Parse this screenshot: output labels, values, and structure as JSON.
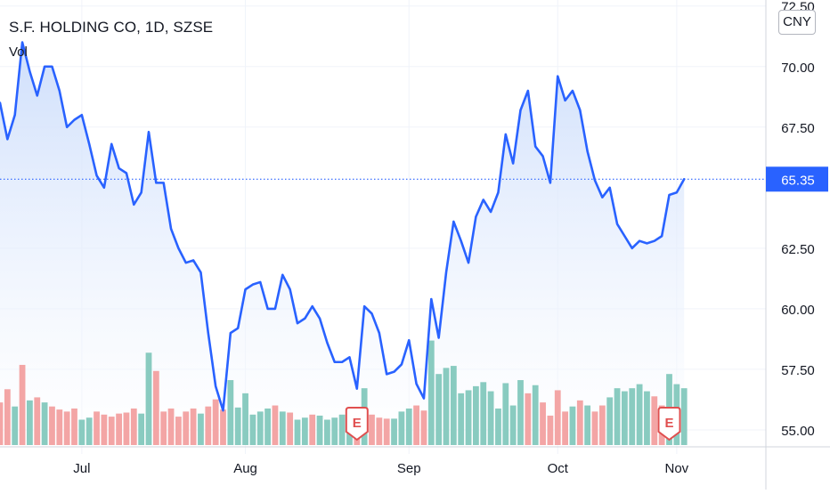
{
  "header": {
    "title": "S.F. HOLDING CO, 1D, SZSE",
    "volume_label": "Vol",
    "currency": "CNY"
  },
  "colors": {
    "line": "#2962ff",
    "area_top": "#c9dbfb",
    "area_bottom": "#ffffff",
    "vol_up": "#89cbc0",
    "vol_down": "#f3a5a5",
    "price_tag": "#2962ff",
    "earnings": "#e04f4f",
    "grid": "#f0f3fa",
    "axis_text": "#131722"
  },
  "chart_data": {
    "type": "line",
    "title": "S.F. HOLDING CO, 1D, SZSE",
    "y_axis_side": "right",
    "ylim": [
      54.3,
      72.6
    ],
    "y_ticks": [
      "55.00",
      "57.50",
      "60.00",
      "62.50",
      "67.50",
      "70.00",
      "72.50"
    ],
    "x_ticks": [
      "Jul",
      "Aug",
      "Sep",
      "Oct",
      "Nov"
    ],
    "last_price": "65.35",
    "grid": true,
    "series": [
      {
        "values": [
          68.5,
          67.0,
          68.0,
          71.0,
          69.8,
          68.8,
          70.0,
          70.0,
          69.0,
          67.5,
          67.8,
          68.0,
          66.8,
          65.5,
          65.0,
          66.8,
          65.8,
          65.6,
          64.3,
          64.8,
          67.3,
          65.2,
          65.2,
          63.3,
          62.5,
          61.9,
          62.0,
          61.5,
          59.0,
          56.8,
          55.8,
          59.0,
          59.2,
          60.8,
          61.0,
          61.1,
          60.0,
          60.0,
          61.4,
          60.8,
          59.4,
          59.6,
          60.1,
          59.6,
          58.6,
          57.8,
          57.8,
          58.0,
          56.7,
          60.1,
          59.8,
          59.0,
          57.3,
          57.4,
          57.7,
          58.7,
          56.9,
          56.3,
          60.4,
          58.8,
          61.5,
          63.6,
          62.8,
          61.9,
          63.8,
          64.5,
          64.0,
          64.8,
          67.2,
          66.0,
          68.2,
          69.0,
          66.7,
          66.3,
          65.2,
          69.6,
          68.6,
          69.0,
          68.2,
          66.5,
          65.3,
          64.6,
          65.0,
          63.5,
          63.0,
          62.5,
          62.8,
          62.7,
          62.8,
          63.0,
          64.7,
          64.8,
          65.35
        ]
      },
      {
        "name": "Vol",
        "type": "bar",
        "directions": [
          "down",
          "down",
          "up",
          "down",
          "up",
          "down",
          "up",
          "down",
          "down",
          "down",
          "down",
          "up",
          "up",
          "down",
          "down",
          "down",
          "down",
          "down",
          "down",
          "up",
          "up",
          "down",
          "down",
          "down",
          "down",
          "down",
          "down",
          "up",
          "down",
          "down",
          "down",
          "up",
          "up",
          "up",
          "up",
          "up",
          "up",
          "down",
          "up",
          "down",
          "up",
          "up",
          "down",
          "up",
          "up",
          "up",
          "up",
          "up",
          "down",
          "up",
          "down",
          "down",
          "down",
          "up",
          "up",
          "up",
          "down",
          "down",
          "up",
          "up",
          "up",
          "up",
          "up",
          "up",
          "up",
          "up",
          "up",
          "up",
          "up",
          "up",
          "up",
          "down",
          "up",
          "down",
          "down",
          "down",
          "down",
          "up",
          "down",
          "up",
          "down",
          "down",
          "up",
          "up",
          "up",
          "up",
          "up",
          "up",
          "down",
          "down",
          "up",
          "up",
          "up"
        ],
        "heights": [
          4.2,
          5.5,
          3.8,
          7.9,
          4.4,
          4.7,
          4.2,
          3.8,
          3.5,
          3.3,
          3.6,
          2.5,
          2.7,
          3.3,
          3.0,
          2.8,
          3.1,
          3.2,
          3.6,
          3.1,
          9.1,
          7.3,
          3.3,
          3.6,
          2.8,
          3.3,
          3.6,
          3.1,
          3.8,
          4.5,
          3.5,
          6.4,
          3.7,
          5.1,
          3.0,
          3.3,
          3.6,
          3.9,
          3.3,
          3.2,
          2.5,
          2.7,
          3.0,
          2.9,
          2.5,
          2.7,
          3.0,
          1.8,
          2.8,
          5.6,
          3.0,
          2.7,
          2.6,
          2.6,
          3.3,
          3.6,
          3.9,
          3.4,
          10.3,
          7.0,
          7.6,
          7.8,
          5.1,
          5.4,
          5.8,
          6.2,
          5.3,
          3.6,
          6.1,
          3.9,
          6.4,
          5.1,
          5.9,
          4.2,
          2.9,
          5.4,
          3.3,
          3.8,
          4.4,
          3.9,
          3.3,
          3.9,
          4.7,
          5.6,
          5.3,
          5.6,
          6.0,
          5.3,
          4.8,
          3.9,
          7.0,
          6.0,
          5.6
        ]
      }
    ],
    "earnings_markers": [
      "E",
      "E"
    ]
  }
}
